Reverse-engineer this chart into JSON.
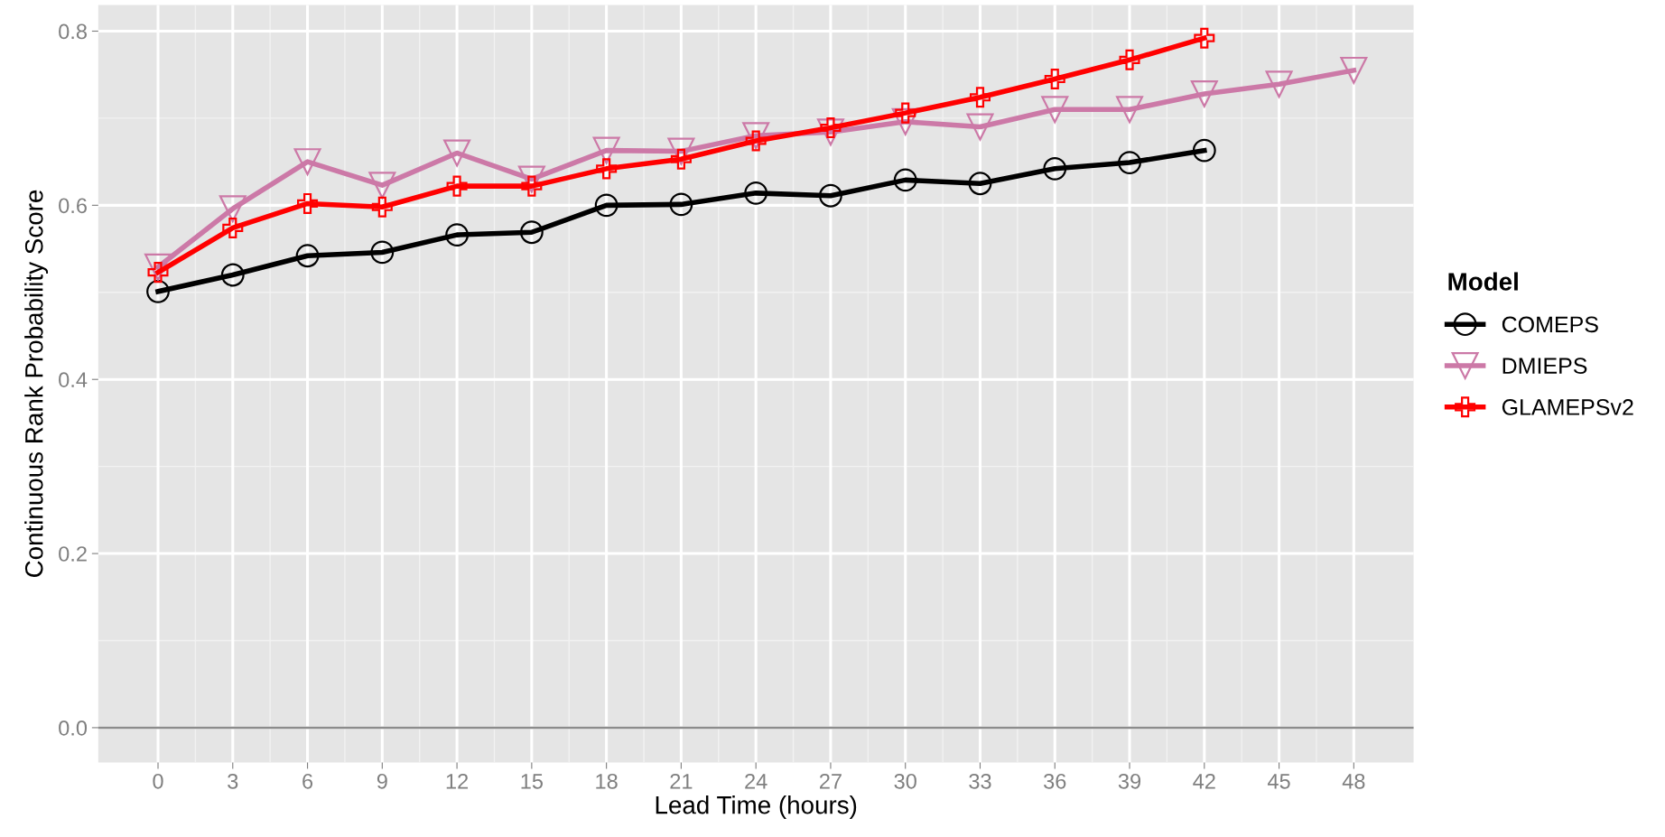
{
  "chart_data": {
    "type": "line",
    "xlabel": "Lead Time (hours)",
    "ylabel": "Continuous Rank Probability Score",
    "legend_title": "Model",
    "legend": "right",
    "grid": true,
    "x": [
      0,
      3,
      6,
      9,
      12,
      15,
      18,
      21,
      24,
      27,
      30,
      33,
      36,
      39,
      42,
      45,
      48
    ],
    "xlim": [
      -2.4,
      50.4
    ],
    "xticks": [
      0,
      3,
      6,
      9,
      12,
      15,
      18,
      21,
      24,
      27,
      30,
      33,
      36,
      39,
      42,
      45,
      48
    ],
    "ylim": [
      -0.04,
      0.83
    ],
    "yticks": [
      {
        "value": 0,
        "label": "0.0"
      },
      0.2,
      0.4,
      0.6,
      0.8
    ],
    "ref_lines": [
      {
        "axis": "y",
        "value": 0,
        "color": "#8c8c8c"
      }
    ],
    "series": [
      {
        "name": "COMEPS",
        "color": "#000000",
        "marker": "circle",
        "x": [
          0,
          3,
          6,
          9,
          12,
          15,
          18,
          21,
          24,
          27,
          30,
          33,
          36,
          39,
          42
        ],
        "values": [
          0.501,
          0.52,
          0.542,
          0.546,
          0.566,
          0.569,
          0.6,
          0.601,
          0.614,
          0.611,
          0.629,
          0.625,
          0.642,
          0.649,
          0.663
        ]
      },
      {
        "name": "DMIEPS",
        "color": "#cc79a7",
        "marker": "triangle",
        "values": [
          0.529,
          0.596,
          0.65,
          0.623,
          0.66,
          0.63,
          0.663,
          0.662,
          0.68,
          0.684,
          0.696,
          0.69,
          0.71,
          0.71,
          0.728,
          0.739,
          0.755
        ]
      },
      {
        "name": "GLAMEPSv2",
        "color": "#ff0000",
        "marker": "cross",
        "x": [
          0,
          3,
          6,
          9,
          12,
          15,
          18,
          21,
          24,
          27,
          30,
          33,
          36,
          39,
          42
        ],
        "values": [
          0.523,
          0.574,
          0.602,
          0.598,
          0.622,
          0.622,
          0.642,
          0.653,
          0.674,
          0.689,
          0.706,
          0.724,
          0.745,
          0.767,
          0.792
        ]
      }
    ]
  }
}
